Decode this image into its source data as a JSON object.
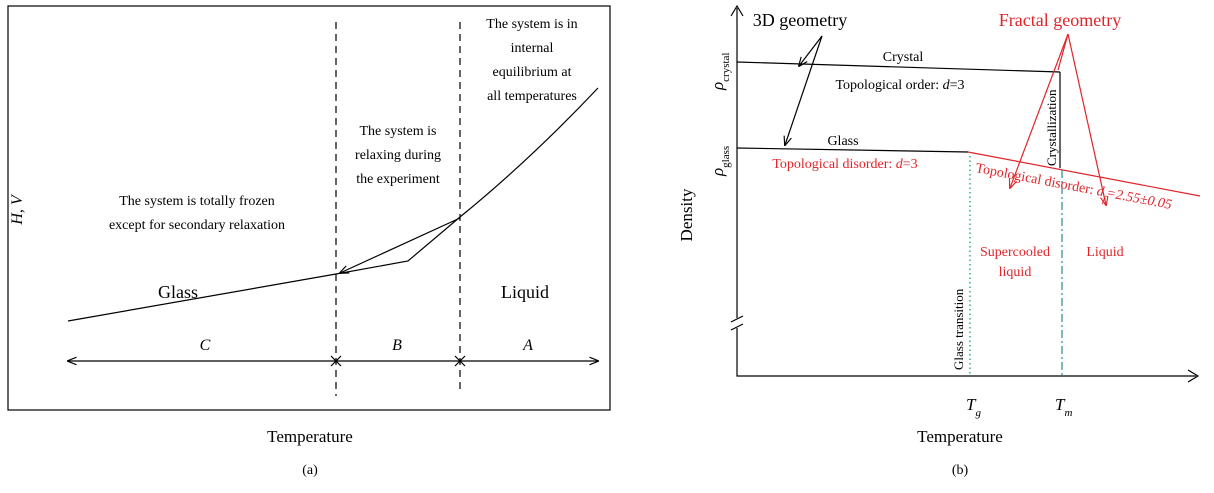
{
  "panel_a": {
    "y_label": "H, V",
    "equilibrium_note": [
      "The system is in",
      "internal",
      "equilibrium at",
      "all temperatures"
    ],
    "relaxing_note": [
      "The system is",
      "relaxing during",
      "the experiment"
    ],
    "frozen_note": [
      "The system is totally frozen",
      "except for secondary relaxation"
    ],
    "glass": "Glass",
    "liquid": "Liquid",
    "regions": [
      "C",
      "B",
      "A"
    ],
    "x_label": "Temperature",
    "caption": "(a)"
  },
  "panel_b": {
    "geometry_3d": "3D geometry",
    "geometry_fractal": "Fractal geometry",
    "crystal": "Crystal",
    "crystal_order": [
      "Topological order: ",
      "d",
      "=3"
    ],
    "rho_crystal": {
      "symbol": "ρ",
      "subscript": "crystal"
    },
    "rho_glass": {
      "symbol": "ρ",
      "subscript": "glass"
    },
    "y_label": "Density",
    "glass": "Glass",
    "glass_disorder": [
      "Topological disorder: ",
      "d",
      "=3"
    ],
    "crystallization": "Crystallization",
    "liquid_disorder": [
      "Topological disorder: ",
      "d",
      "f",
      "=2.55±0.05"
    ],
    "glass_transition": "Glass transition",
    "supercooled": [
      "Supercooled",
      "liquid"
    ],
    "liquid": "Liquid",
    "tg": {
      "symbol": "T",
      "subscript": "g"
    },
    "tm": {
      "symbol": "T",
      "subscript": "m"
    },
    "x_label": "Temperature",
    "caption": "(b)"
  }
}
